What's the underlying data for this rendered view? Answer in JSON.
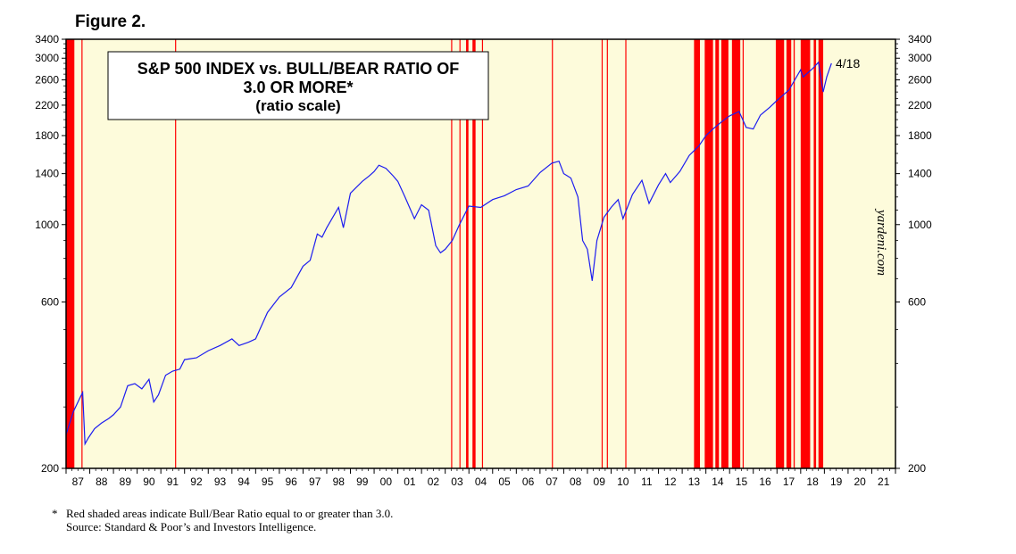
{
  "figure_label": "Figure 2.",
  "colors": {
    "plot_bg": "#fdfbdb",
    "line": "#1c1cf0",
    "shade": "#ff0000",
    "frame": "#000000"
  },
  "chart_data": {
    "type": "line",
    "title_lines": [
      "S&P 500 INDEX vs. BULL/BEAR RATIO OF",
      "3.0 OR MORE*",
      "(ratio scale)"
    ],
    "y_scale": "log",
    "ylim": [
      200,
      3400
    ],
    "y_ticks": [
      200,
      600,
      1000,
      1400,
      1800,
      2200,
      2600,
      3000,
      3400
    ],
    "x_range": [
      1987.0,
      2022.0
    ],
    "x_tick_labels": [
      "87",
      "88",
      "89",
      "90",
      "91",
      "92",
      "93",
      "94",
      "95",
      "96",
      "97",
      "98",
      "99",
      "00",
      "01",
      "02",
      "03",
      "04",
      "05",
      "06",
      "07",
      "08",
      "09",
      "10",
      "11",
      "12",
      "13",
      "14",
      "15",
      "16",
      "17",
      "18",
      "19",
      "20",
      "21"
    ],
    "grid": false,
    "watermark": "yardeni.com",
    "end_label": "4/18",
    "series": [
      {
        "points": [
          [
            1987.0,
            250
          ],
          [
            1987.3,
            290
          ],
          [
            1987.6,
            320
          ],
          [
            1987.7,
            330
          ],
          [
            1987.8,
            235
          ],
          [
            1987.95,
            245
          ],
          [
            1988.2,
            260
          ],
          [
            1988.5,
            270
          ],
          [
            1988.8,
            278
          ],
          [
            1989.0,
            285
          ],
          [
            1989.3,
            300
          ],
          [
            1989.6,
            345
          ],
          [
            1989.9,
            350
          ],
          [
            1990.2,
            338
          ],
          [
            1990.5,
            360
          ],
          [
            1990.7,
            310
          ],
          [
            1990.9,
            325
          ],
          [
            1991.2,
            370
          ],
          [
            1991.5,
            380
          ],
          [
            1991.8,
            385
          ],
          [
            1992.0,
            410
          ],
          [
            1992.5,
            415
          ],
          [
            1993.0,
            435
          ],
          [
            1993.5,
            450
          ],
          [
            1994.0,
            470
          ],
          [
            1994.3,
            450
          ],
          [
            1994.7,
            460
          ],
          [
            1995.0,
            470
          ],
          [
            1995.5,
            560
          ],
          [
            1996.0,
            620
          ],
          [
            1996.5,
            660
          ],
          [
            1997.0,
            760
          ],
          [
            1997.3,
            790
          ],
          [
            1997.6,
            940
          ],
          [
            1997.8,
            920
          ],
          [
            1998.0,
            980
          ],
          [
            1998.5,
            1120
          ],
          [
            1998.7,
            980
          ],
          [
            1999.0,
            1230
          ],
          [
            1999.5,
            1330
          ],
          [
            1999.8,
            1380
          ],
          [
            2000.0,
            1420
          ],
          [
            2000.2,
            1480
          ],
          [
            2000.5,
            1450
          ],
          [
            2000.8,
            1380
          ],
          [
            2001.0,
            1330
          ],
          [
            2001.3,
            1200
          ],
          [
            2001.7,
            1040
          ],
          [
            2002.0,
            1140
          ],
          [
            2002.3,
            1100
          ],
          [
            2002.6,
            870
          ],
          [
            2002.8,
            830
          ],
          [
            2003.0,
            850
          ],
          [
            2003.3,
            900
          ],
          [
            2003.6,
            1000
          ],
          [
            2004.0,
            1130
          ],
          [
            2004.5,
            1120
          ],
          [
            2005.0,
            1180
          ],
          [
            2005.5,
            1210
          ],
          [
            2006.0,
            1260
          ],
          [
            2006.5,
            1290
          ],
          [
            2007.0,
            1410
          ],
          [
            2007.5,
            1500
          ],
          [
            2007.8,
            1520
          ],
          [
            2008.0,
            1400
          ],
          [
            2008.3,
            1360
          ],
          [
            2008.6,
            1200
          ],
          [
            2008.8,
            900
          ],
          [
            2009.0,
            850
          ],
          [
            2009.2,
            690
          ],
          [
            2009.4,
            900
          ],
          [
            2009.7,
            1050
          ],
          [
            2010.0,
            1120
          ],
          [
            2010.3,
            1180
          ],
          [
            2010.5,
            1040
          ],
          [
            2010.9,
            1220
          ],
          [
            2011.3,
            1340
          ],
          [
            2011.6,
            1150
          ],
          [
            2012.0,
            1300
          ],
          [
            2012.3,
            1400
          ],
          [
            2012.5,
            1320
          ],
          [
            2012.9,
            1420
          ],
          [
            2013.3,
            1580
          ],
          [
            2013.7,
            1680
          ],
          [
            2014.0,
            1800
          ],
          [
            2014.3,
            1880
          ],
          [
            2014.7,
            1980
          ],
          [
            2015.0,
            2050
          ],
          [
            2015.4,
            2110
          ],
          [
            2015.7,
            1900
          ],
          [
            2016.0,
            1880
          ],
          [
            2016.3,
            2060
          ],
          [
            2016.7,
            2170
          ],
          [
            2017.0,
            2270
          ],
          [
            2017.5,
            2430
          ],
          [
            2018.0,
            2780
          ],
          [
            2018.1,
            2650
          ],
          [
            2018.5,
            2800
          ],
          [
            2018.75,
            2920
          ],
          [
            2018.95,
            2400
          ],
          [
            2019.1,
            2650
          ],
          [
            2019.3,
            2900
          ]
        ]
      }
    ],
    "bull_bear_shading_periods": [
      [
        1987.0,
        1987.35
      ],
      [
        1987.65,
        1987.68
      ],
      [
        1991.6,
        1991.63
      ],
      [
        2003.25,
        2003.28
      ],
      [
        2003.6,
        2003.63
      ],
      [
        2003.88,
        2003.98
      ],
      [
        2004.15,
        2004.28
      ],
      [
        2004.55,
        2004.58
      ],
      [
        2007.5,
        2007.53
      ],
      [
        2009.6,
        2009.63
      ],
      [
        2009.82,
        2009.85
      ],
      [
        2010.6,
        2010.63
      ],
      [
        2013.5,
        2013.75
      ],
      [
        2013.95,
        2014.3
      ],
      [
        2014.4,
        2014.55
      ],
      [
        2014.65,
        2014.95
      ],
      [
        2015.1,
        2015.45
      ],
      [
        2015.55,
        2015.58
      ],
      [
        2016.95,
        2017.3
      ],
      [
        2017.4,
        2017.6
      ],
      [
        2017.7,
        2017.75
      ],
      [
        2018.0,
        2018.4
      ],
      [
        2018.55,
        2018.65
      ],
      [
        2018.75,
        2018.95
      ]
    ]
  },
  "footnote": {
    "star": "*",
    "line1": "Red shaded areas indicate Bull/Bear Ratio equal to or greater than 3.0.",
    "line2": "Source: Standard & Poor’s and Investors Intelligence."
  }
}
